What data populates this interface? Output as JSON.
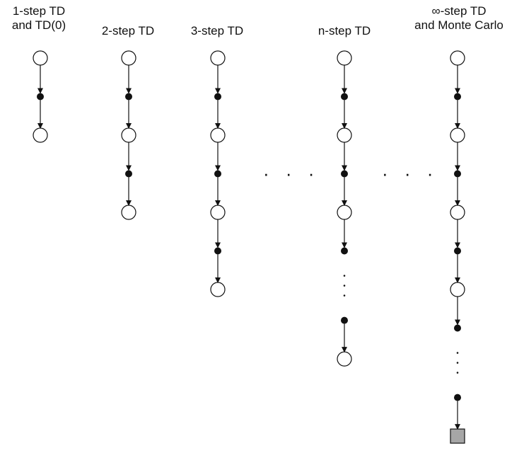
{
  "diagram": {
    "columns": [
      {
        "label_line1": "1-step TD",
        "label_line2": "and TD(0)",
        "sequence": [
          "state",
          "action",
          "state"
        ]
      },
      {
        "label_line1": "2-step TD",
        "label_line2": "",
        "sequence": [
          "state",
          "action",
          "state",
          "action",
          "state"
        ]
      },
      {
        "label_line1": "3-step TD",
        "label_line2": "",
        "sequence": [
          "state",
          "action",
          "state",
          "action",
          "state",
          "action",
          "state"
        ]
      },
      {
        "label_line1": "n-step TD",
        "label_line2": "",
        "sequence": [
          "state",
          "action",
          "state",
          "action",
          "state",
          "action",
          "ellipsis",
          "action",
          "state"
        ]
      },
      {
        "label_line1": "∞-step TD",
        "label_line2": "and Monte Carlo",
        "sequence": [
          "state",
          "action",
          "state",
          "action",
          "state",
          "action",
          "state",
          "action",
          "ellipsis",
          "action",
          "terminal"
        ]
      }
    ],
    "between_dots": [
      "· · ·",
      "· · ·"
    ],
    "colors": {
      "stroke": "#111111",
      "state_fill": "#ffffff",
      "action_fill": "#111111",
      "terminal_fill": "#a6a6a6"
    }
  }
}
